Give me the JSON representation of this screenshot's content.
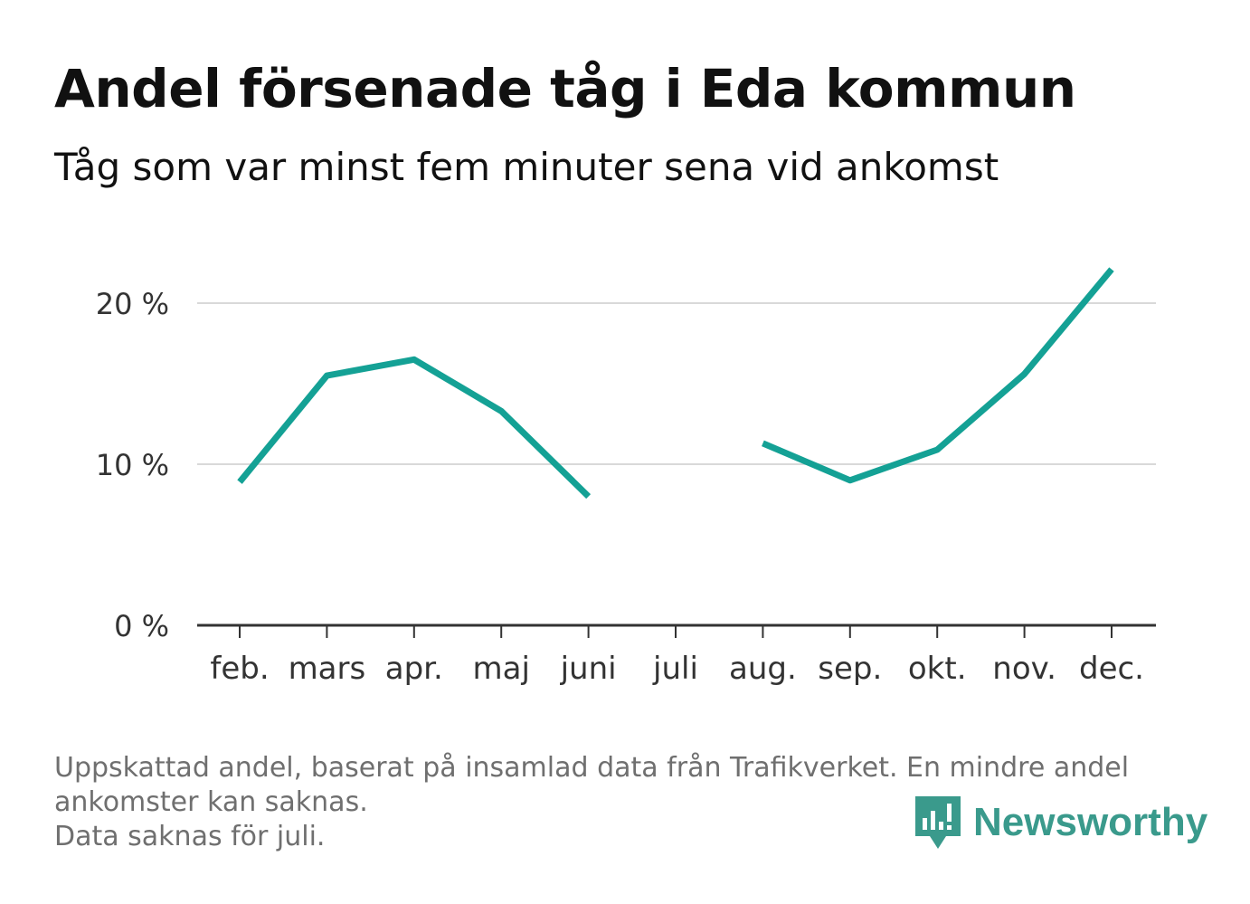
{
  "header": {
    "title": "Andel försenade tåg i Eda kommun",
    "subtitle": "Tåg som var minst fem minuter sena vid ankomst"
  },
  "chart_data": {
    "type": "line",
    "categories": [
      "feb.",
      "mars",
      "apr.",
      "maj",
      "juni",
      "juli",
      "aug.",
      "sep.",
      "okt.",
      "nov.",
      "dec."
    ],
    "series": [
      {
        "values": [
          8.9,
          15.5,
          16.5,
          13.3,
          8.0,
          null,
          11.3,
          9.0,
          10.9,
          15.6,
          22.1
        ]
      }
    ],
    "yticks": [
      0,
      10,
      20
    ],
    "ytick_labels": [
      "0 %",
      "10 %",
      "20 %"
    ],
    "ylim": [
      0,
      24
    ],
    "grid": true,
    "line_color": "#14a195"
  },
  "footnote": {
    "line1": "Uppskattad andel, baserat på insamlad data från Trafikverket. En mindre andel",
    "line2": "ankomster kan saknas.",
    "line3": "Data saknas för juli."
  },
  "logo": {
    "text": "Newsworthy",
    "color": "#3a9a8c"
  }
}
